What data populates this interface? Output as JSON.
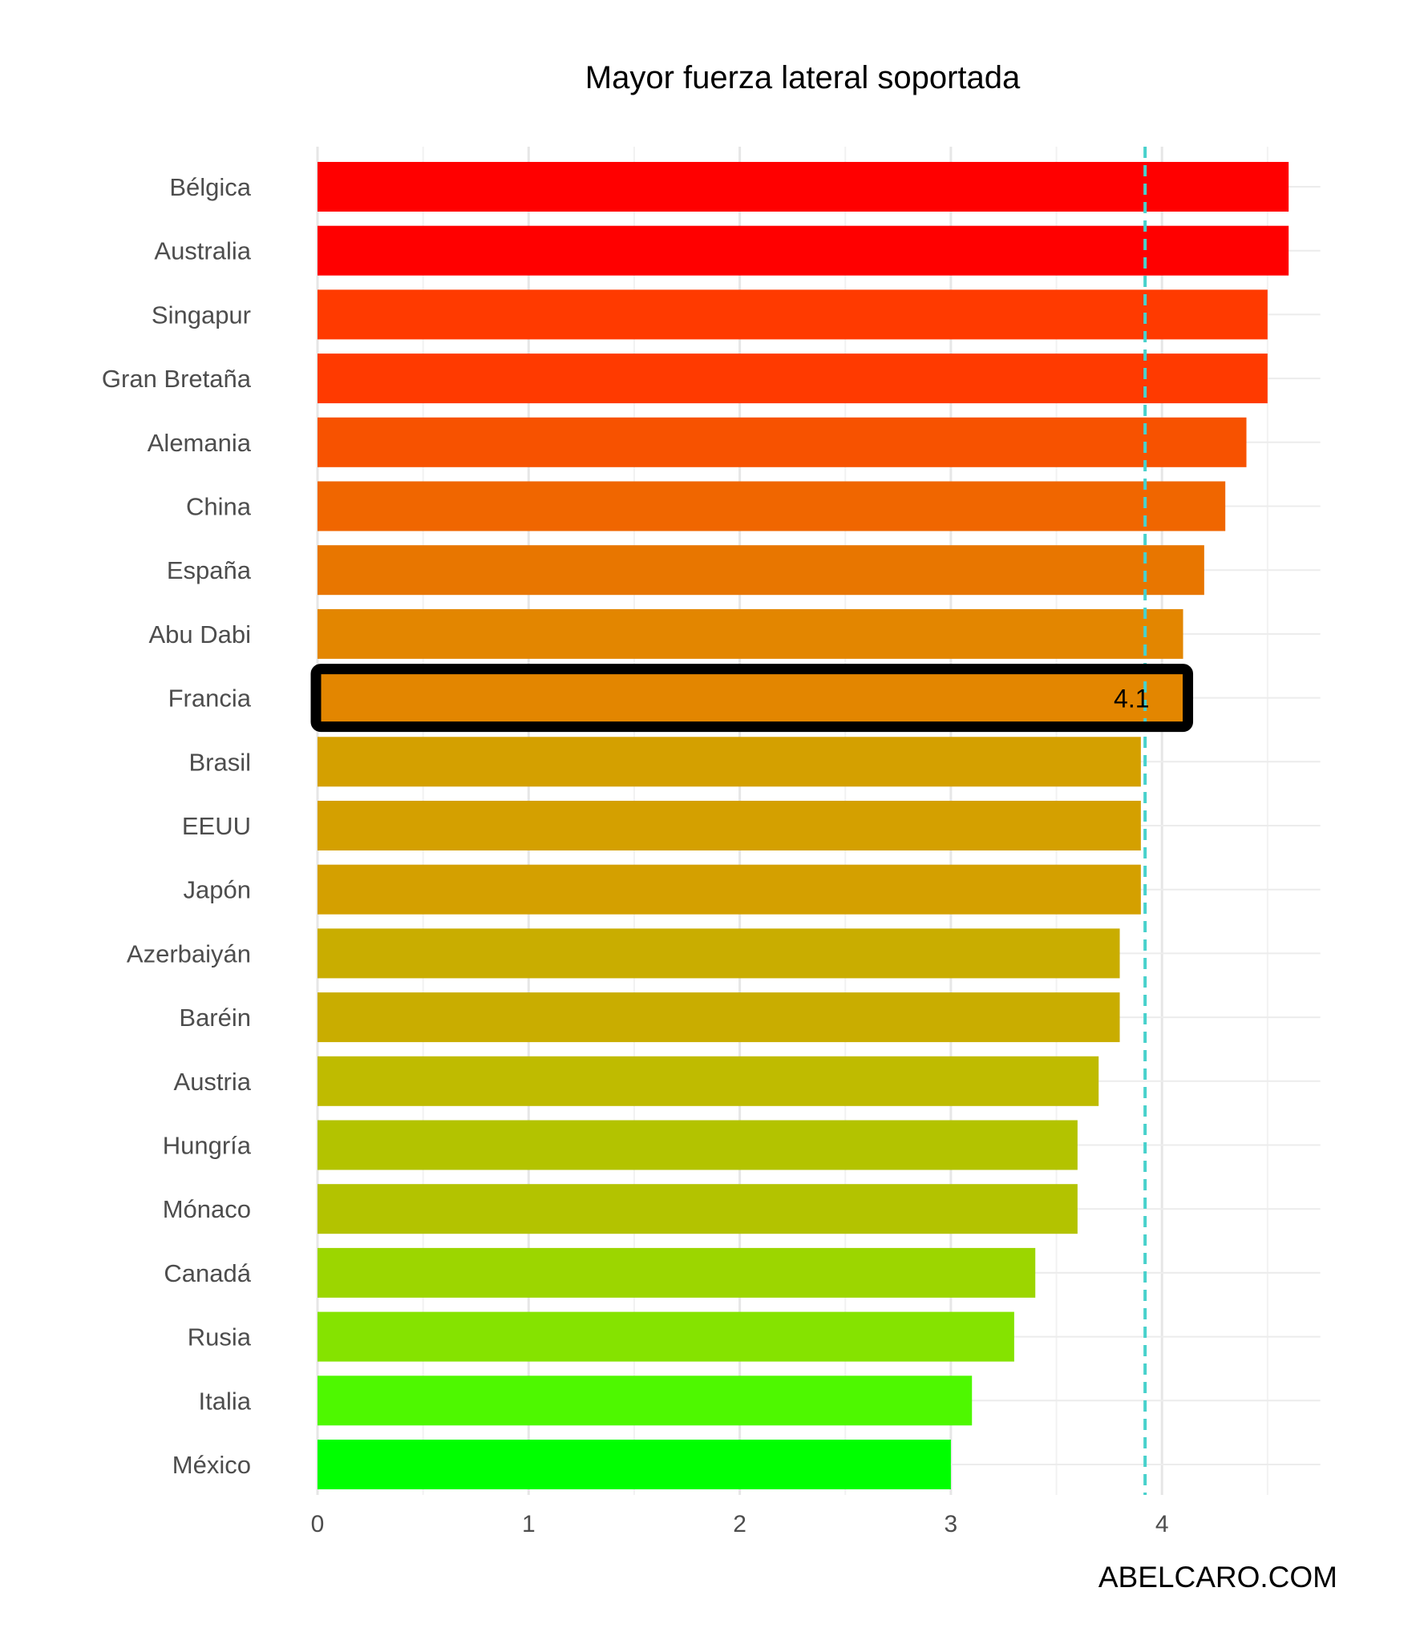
{
  "chart_data": {
    "type": "bar",
    "orientation": "horizontal",
    "title": "Mayor fuerza lateral soportada",
    "xlabel": "",
    "ylabel": "",
    "categories": [
      "Bélgica",
      "Australia",
      "Singapur",
      "Gran Bretaña",
      "Alemania",
      "China",
      "España",
      "Abu Dabi",
      "Francia",
      "Brasil",
      "EEUU",
      "Japón",
      "Azerbaiyán",
      "Baréin",
      "Austria",
      "Hungría",
      "Mónaco",
      "Canadá",
      "Rusia",
      "Italia",
      "México"
    ],
    "values": [
      4.6,
      4.6,
      4.5,
      4.5,
      4.4,
      4.3,
      4.2,
      4.1,
      4.1,
      3.9,
      3.9,
      3.9,
      3.8,
      3.8,
      3.7,
      3.6,
      3.6,
      3.4,
      3.3,
      3.1,
      3.0
    ],
    "colors": [
      "#ff0000",
      "#ff0000",
      "#ff3a00",
      "#ff3a00",
      "#f75200",
      "#f06600",
      "#e87600",
      "#e38600",
      "#e38600",
      "#d4a000",
      "#d4a000",
      "#d4a000",
      "#c9ad00",
      "#c9ad00",
      "#bfbb00",
      "#b3c300",
      "#b3c300",
      "#9cd600",
      "#85e300",
      "#4ef800",
      "#00ff00"
    ],
    "xlim": [
      0,
      4.75
    ],
    "xticks": [
      0,
      1,
      2,
      3,
      4
    ],
    "grid": true,
    "legend": "none",
    "reference_line": {
      "value": 3.92,
      "style": "dashed",
      "color": "#48d1cc"
    },
    "highlight": {
      "category": "Francia",
      "label": "4.1"
    }
  },
  "watermark": "ABELCARO.COM"
}
